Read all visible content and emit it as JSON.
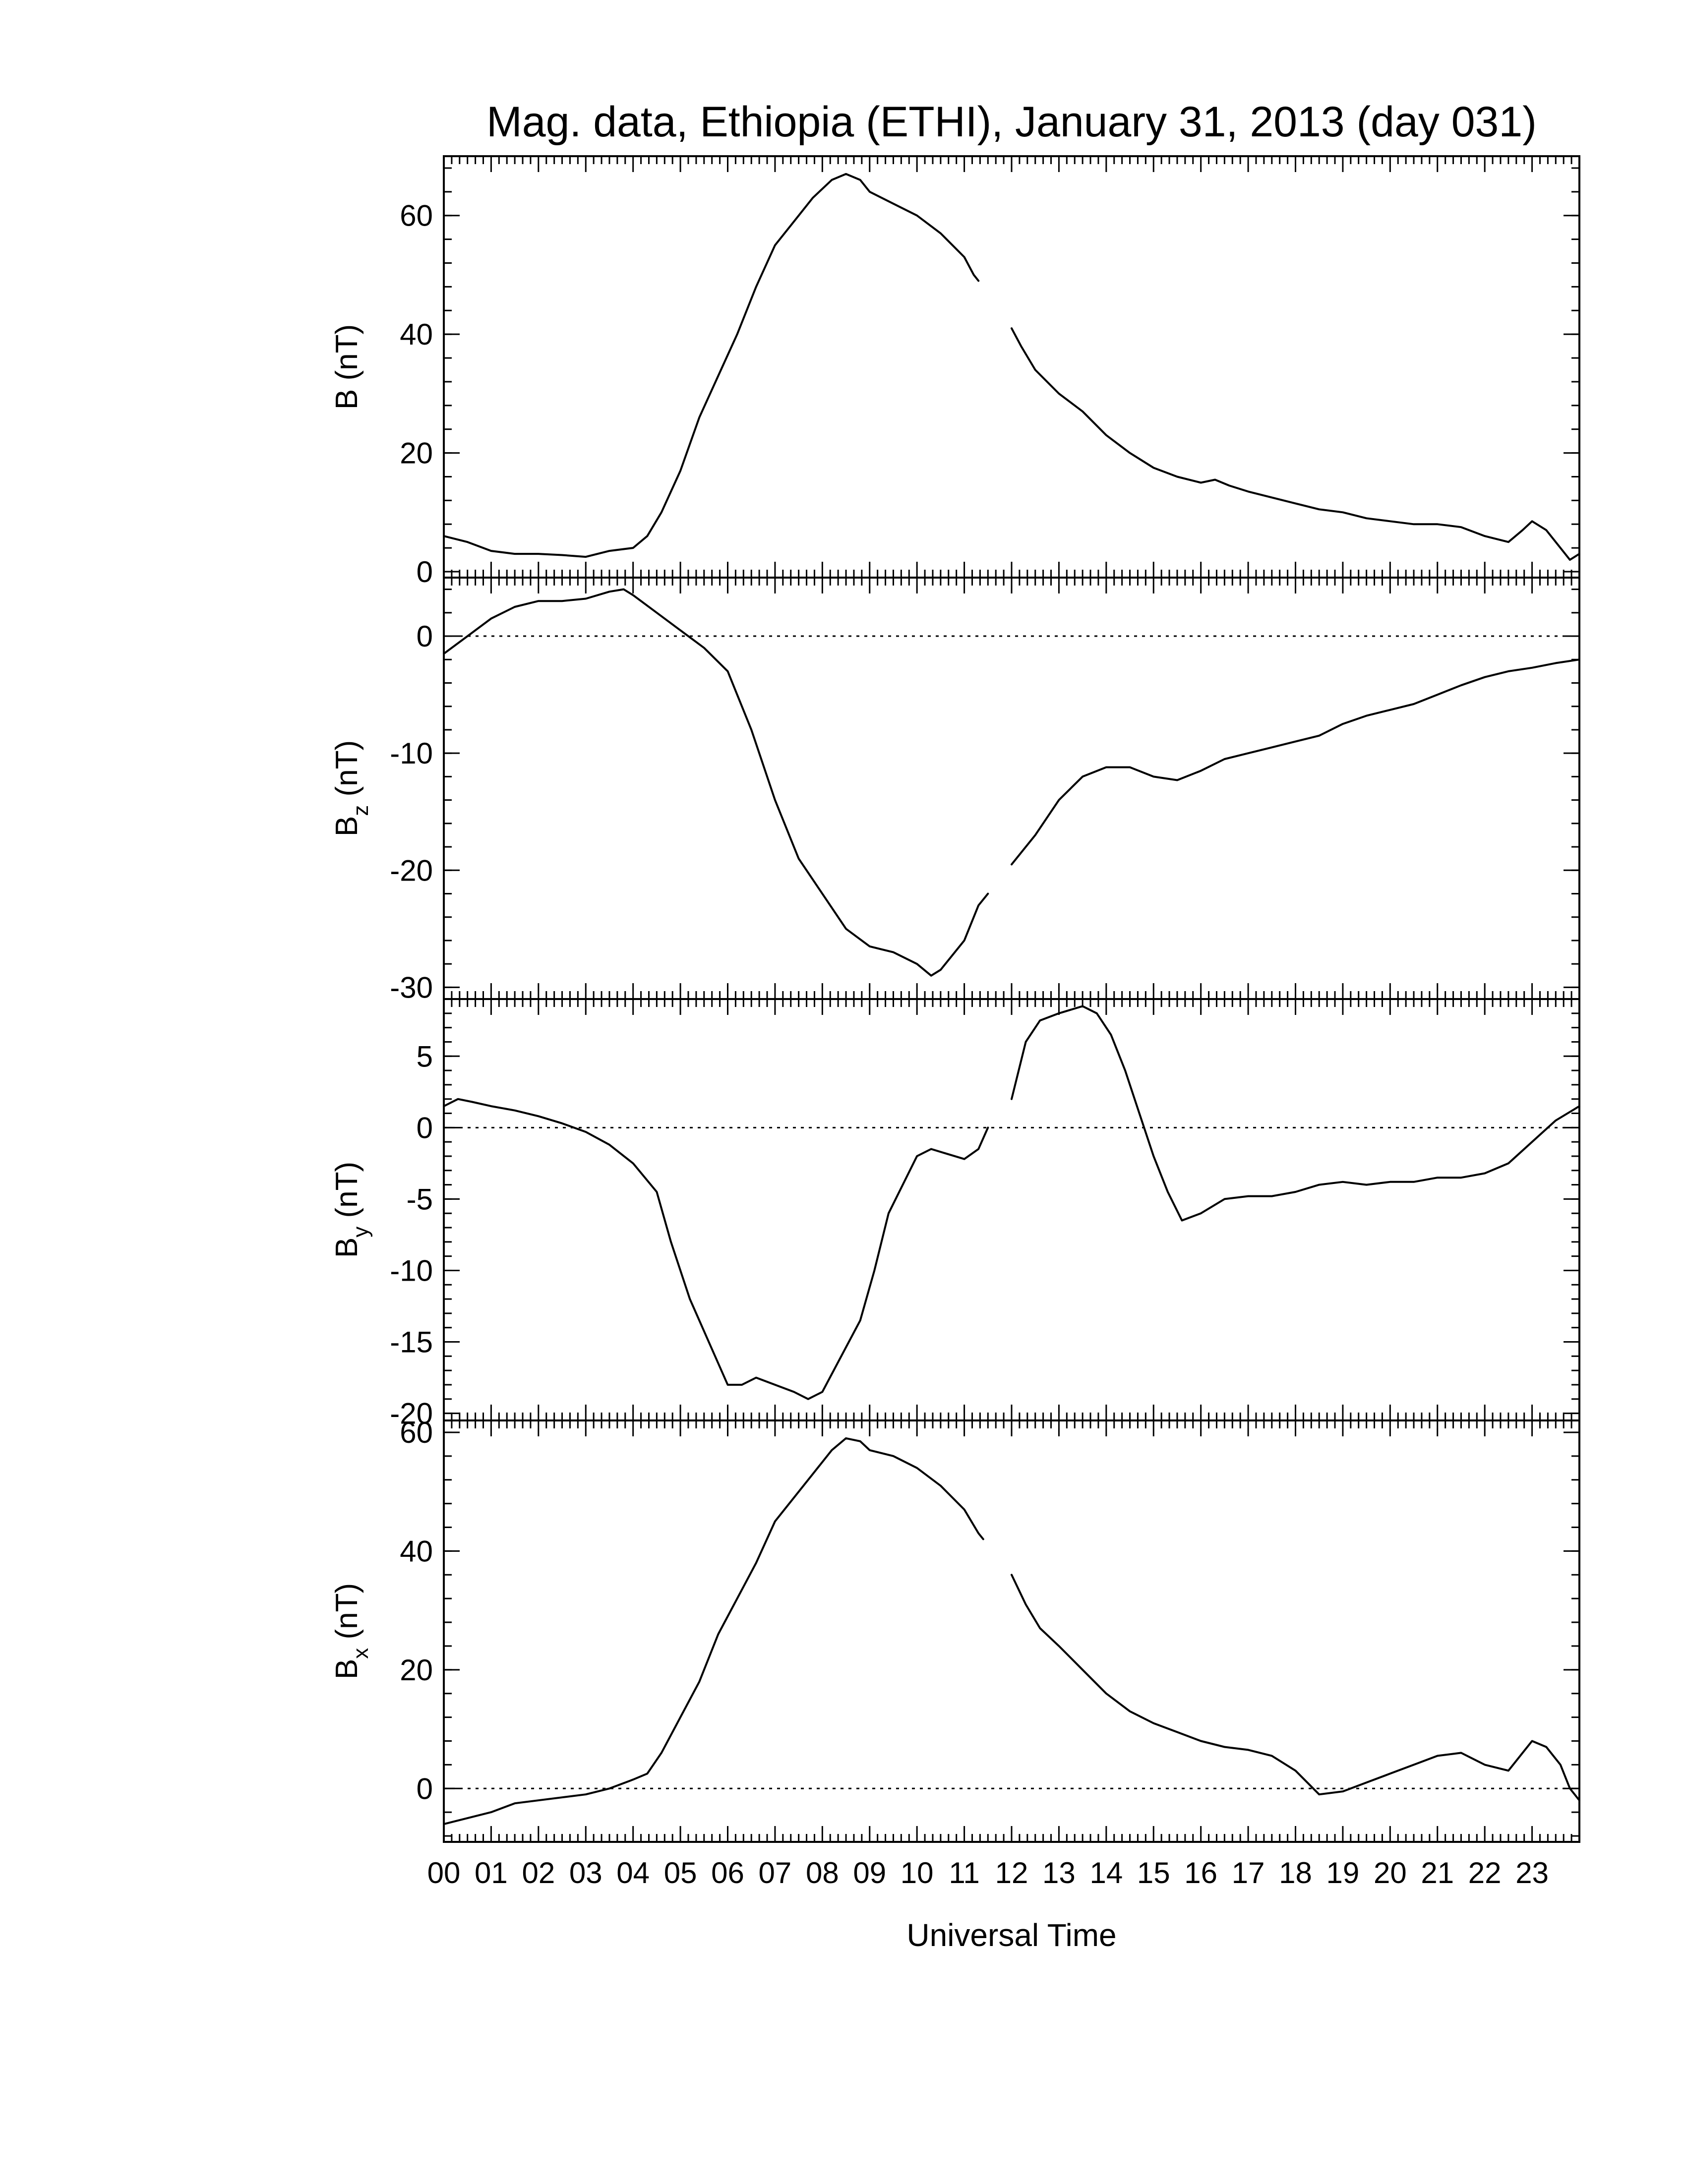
{
  "title": "Mag. data, Ethiopia (ETHI), January 31, 2013 (day 031)",
  "chart_data": {
    "type": "line",
    "title": "Mag. data, Ethiopia (ETHI), January 31, 2013 (day 031)",
    "xlabel": "Universal Time",
    "xlim": [
      0,
      24
    ],
    "xtick_labels": [
      "00",
      "01",
      "02",
      "03",
      "04",
      "05",
      "06",
      "07",
      "08",
      "09",
      "10",
      "11",
      "12",
      "13",
      "14",
      "15",
      "16",
      "17",
      "18",
      "19",
      "20",
      "21",
      "22",
      "23"
    ],
    "panels": [
      {
        "id": "B",
        "ylabel_main": "B",
        "ylabel_sub": "",
        "ylabel_unit": " (nT)",
        "ylim": [
          -1,
          70
        ],
        "yticks": [
          0,
          20,
          40,
          60
        ],
        "zero_line": false,
        "segments": [
          [
            [
              0,
              6
            ],
            [
              0.5,
              5
            ],
            [
              1,
              3.5
            ],
            [
              1.5,
              3
            ],
            [
              2,
              3
            ],
            [
              2.5,
              2.8
            ],
            [
              3,
              2.5
            ],
            [
              3.5,
              3.5
            ],
            [
              4,
              4
            ],
            [
              4.3,
              6
            ],
            [
              4.6,
              10
            ],
            [
              5,
              17
            ],
            [
              5.4,
              26
            ],
            [
              5.8,
              33
            ],
            [
              6.2,
              40
            ],
            [
              6.6,
              48
            ],
            [
              7,
              55
            ],
            [
              7.4,
              59
            ],
            [
              7.8,
              63
            ],
            [
              8.2,
              66
            ],
            [
              8.5,
              67
            ],
            [
              8.8,
              66
            ],
            [
              9,
              64
            ],
            [
              9.5,
              62
            ],
            [
              10,
              60
            ],
            [
              10.5,
              57
            ],
            [
              11,
              53
            ],
            [
              11.2,
              50
            ],
            [
              11.3,
              49
            ]
          ],
          [
            [
              12,
              41
            ],
            [
              12.2,
              38
            ],
            [
              12.5,
              34
            ],
            [
              13,
              30
            ],
            [
              13.5,
              27
            ],
            [
              14,
              23
            ],
            [
              14.5,
              20
            ],
            [
              15,
              17.5
            ],
            [
              15.5,
              16
            ],
            [
              16,
              15
            ],
            [
              16.3,
              15.5
            ],
            [
              16.6,
              14.5
            ],
            [
              17,
              13.5
            ],
            [
              17.5,
              12.5
            ],
            [
              18,
              11.5
            ],
            [
              18.5,
              10.5
            ],
            [
              19,
              10
            ],
            [
              19.5,
              9
            ],
            [
              20,
              8.5
            ],
            [
              20.5,
              8
            ],
            [
              21,
              8
            ],
            [
              21.5,
              7.5
            ],
            [
              22,
              6
            ],
            [
              22.5,
              5
            ],
            [
              22.8,
              7
            ],
            [
              23,
              8.5
            ],
            [
              23.3,
              7
            ],
            [
              23.6,
              4
            ],
            [
              23.8,
              2
            ],
            [
              24,
              3
            ]
          ]
        ]
      },
      {
        "id": "Bz",
        "ylabel_main": "B",
        "ylabel_sub": "z",
        "ylabel_unit": " (nT)",
        "ylim": [
          -31,
          5
        ],
        "yticks": [
          0,
          -10,
          -20,
          -30
        ],
        "zero_line": true,
        "segments": [
          [
            [
              0,
              -1.5
            ],
            [
              0.5,
              0
            ],
            [
              1,
              1.5
            ],
            [
              1.5,
              2.5
            ],
            [
              2,
              3
            ],
            [
              2.5,
              3
            ],
            [
              3,
              3.2
            ],
            [
              3.5,
              3.8
            ],
            [
              3.8,
              4
            ],
            [
              4,
              3.5
            ],
            [
              4.5,
              2
            ],
            [
              5,
              0.5
            ],
            [
              5.5,
              -1
            ],
            [
              6,
              -3
            ],
            [
              6.5,
              -8
            ],
            [
              7,
              -14
            ],
            [
              7.5,
              -19
            ],
            [
              8,
              -22
            ],
            [
              8.5,
              -25
            ],
            [
              9,
              -26.5
            ],
            [
              9.5,
              -27
            ],
            [
              10,
              -28
            ],
            [
              10.3,
              -29
            ],
            [
              10.5,
              -28.5
            ],
            [
              11,
              -26
            ],
            [
              11.3,
              -23
            ],
            [
              11.5,
              -22
            ]
          ],
          [
            [
              12,
              -19.5
            ],
            [
              12.5,
              -17
            ],
            [
              13,
              -14
            ],
            [
              13.5,
              -12
            ],
            [
              14,
              -11.2
            ],
            [
              14.5,
              -11.2
            ],
            [
              15,
              -12
            ],
            [
              15.5,
              -12.3
            ],
            [
              16,
              -11.5
            ],
            [
              16.5,
              -10.5
            ],
            [
              17,
              -10
            ],
            [
              17.5,
              -9.5
            ],
            [
              18,
              -9
            ],
            [
              18.5,
              -8.5
            ],
            [
              19,
              -7.5
            ],
            [
              19.5,
              -6.8
            ],
            [
              20,
              -6.3
            ],
            [
              20.5,
              -5.8
            ],
            [
              21,
              -5
            ],
            [
              21.5,
              -4.2
            ],
            [
              22,
              -3.5
            ],
            [
              22.5,
              -3
            ],
            [
              23,
              -2.7
            ],
            [
              23.5,
              -2.3
            ],
            [
              24,
              -2
            ]
          ]
        ]
      },
      {
        "id": "By",
        "ylabel_main": "B",
        "ylabel_sub": "y",
        "ylabel_unit": " (nT)",
        "ylim": [
          -20.5,
          9
        ],
        "yticks": [
          5,
          0,
          -5,
          -10,
          -15,
          -20
        ],
        "zero_line": true,
        "segments": [
          [
            [
              0,
              1.5
            ],
            [
              0.3,
              2
            ],
            [
              0.6,
              1.8
            ],
            [
              1,
              1.5
            ],
            [
              1.5,
              1.2
            ],
            [
              2,
              0.8
            ],
            [
              2.5,
              0.3
            ],
            [
              3,
              -0.3
            ],
            [
              3.5,
              -1.2
            ],
            [
              4,
              -2.5
            ],
            [
              4.5,
              -4.5
            ],
            [
              4.8,
              -8
            ],
            [
              5.2,
              -12
            ],
            [
              5.6,
              -15
            ],
            [
              6,
              -18
            ],
            [
              6.3,
              -18
            ],
            [
              6.6,
              -17.5
            ],
            [
              7,
              -18
            ],
            [
              7.4,
              -18.5
            ],
            [
              7.7,
              -19
            ],
            [
              8,
              -18.5
            ],
            [
              8.4,
              -16
            ],
            [
              8.8,
              -13.5
            ],
            [
              9.1,
              -10
            ],
            [
              9.4,
              -6
            ],
            [
              9.7,
              -4
            ],
            [
              10,
              -2
            ],
            [
              10.3,
              -1.5
            ],
            [
              10.6,
              -1.8
            ],
            [
              11,
              -2.2
            ],
            [
              11.3,
              -1.5
            ],
            [
              11.5,
              0
            ]
          ],
          [
            [
              12,
              2
            ],
            [
              12.3,
              6
            ],
            [
              12.6,
              7.5
            ],
            [
              13,
              8
            ],
            [
              13.5,
              8.5
            ],
            [
              13.8,
              8
            ],
            [
              14.1,
              6.5
            ],
            [
              14.4,
              4
            ],
            [
              14.7,
              1
            ],
            [
              15,
              -2
            ],
            [
              15.3,
              -4.5
            ],
            [
              15.6,
              -6.5
            ],
            [
              16,
              -6
            ],
            [
              16.5,
              -5
            ],
            [
              17,
              -4.8
            ],
            [
              17.5,
              -4.8
            ],
            [
              18,
              -4.5
            ],
            [
              18.5,
              -4
            ],
            [
              19,
              -3.8
            ],
            [
              19.5,
              -4
            ],
            [
              20,
              -3.8
            ],
            [
              20.5,
              -3.8
            ],
            [
              21,
              -3.5
            ],
            [
              21.5,
              -3.5
            ],
            [
              22,
              -3.2
            ],
            [
              22.5,
              -2.5
            ],
            [
              23,
              -1
            ],
            [
              23.5,
              0.5
            ],
            [
              24,
              1.5
            ]
          ]
        ]
      },
      {
        "id": "Bx",
        "ylabel_main": "B",
        "ylabel_sub": "x",
        "ylabel_unit": " (nT)",
        "ylim": [
          -9,
          62
        ],
        "yticks": [
          0,
          20,
          40,
          60
        ],
        "zero_line": true,
        "segments": [
          [
            [
              0,
              -6
            ],
            [
              0.5,
              -5
            ],
            [
              1,
              -4
            ],
            [
              1.5,
              -2.5
            ],
            [
              2,
              -2
            ],
            [
              2.5,
              -1.5
            ],
            [
              3,
              -1
            ],
            [
              3.5,
              0
            ],
            [
              4,
              1.5
            ],
            [
              4.3,
              2.5
            ],
            [
              4.6,
              6
            ],
            [
              5,
              12
            ],
            [
              5.4,
              18
            ],
            [
              5.8,
              26
            ],
            [
              6.2,
              32
            ],
            [
              6.6,
              38
            ],
            [
              7,
              45
            ],
            [
              7.4,
              49
            ],
            [
              7.8,
              53
            ],
            [
              8.2,
              57
            ],
            [
              8.5,
              59
            ],
            [
              8.8,
              58.5
            ],
            [
              9,
              57
            ],
            [
              9.5,
              56
            ],
            [
              10,
              54
            ],
            [
              10.5,
              51
            ],
            [
              11,
              47
            ],
            [
              11.3,
              43
            ],
            [
              11.4,
              42
            ]
          ],
          [
            [
              12,
              36
            ],
            [
              12.3,
              31
            ],
            [
              12.6,
              27
            ],
            [
              13,
              24
            ],
            [
              13.5,
              20
            ],
            [
              14,
              16
            ],
            [
              14.5,
              13
            ],
            [
              15,
              11
            ],
            [
              15.5,
              9.5
            ],
            [
              16,
              8
            ],
            [
              16.5,
              7
            ],
            [
              17,
              6.5
            ],
            [
              17.5,
              5.5
            ],
            [
              18,
              3
            ],
            [
              18.5,
              -1
            ],
            [
              19,
              -0.5
            ],
            [
              19.5,
              1
            ],
            [
              20,
              2.5
            ],
            [
              20.5,
              4
            ],
            [
              21,
              5.5
            ],
            [
              21.5,
              6
            ],
            [
              22,
              4
            ],
            [
              22.5,
              3
            ],
            [
              22.8,
              6
            ],
            [
              23,
              8
            ],
            [
              23.3,
              7
            ],
            [
              23.6,
              4
            ],
            [
              23.8,
              0
            ],
            [
              24,
              -2
            ]
          ]
        ]
      }
    ]
  }
}
